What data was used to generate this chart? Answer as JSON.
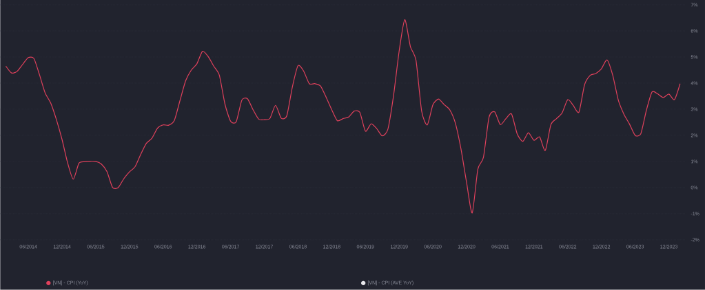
{
  "chart_data": {
    "type": "line",
    "x": [
      "2014-02",
      "2014-03",
      "2014-04",
      "2014-05",
      "2014-06",
      "2014-07",
      "2014-08",
      "2014-09",
      "2014-10",
      "2014-11",
      "2014-12",
      "2015-01",
      "2015-02",
      "2015-03",
      "2015-04",
      "2015-05",
      "2015-06",
      "2015-07",
      "2015-08",
      "2015-09",
      "2015-10",
      "2015-11",
      "2015-12",
      "2016-01",
      "2016-02",
      "2016-03",
      "2016-04",
      "2016-05",
      "2016-06",
      "2016-07",
      "2016-08",
      "2016-09",
      "2016-10",
      "2016-11",
      "2016-12",
      "2017-01",
      "2017-02",
      "2017-03",
      "2017-04",
      "2017-05",
      "2017-06",
      "2017-07",
      "2017-08",
      "2017-09",
      "2017-10",
      "2017-11",
      "2017-12",
      "2018-01",
      "2018-02",
      "2018-03",
      "2018-04",
      "2018-05",
      "2018-06",
      "2018-07",
      "2018-08",
      "2018-09",
      "2018-10",
      "2018-11",
      "2018-12",
      "2019-01",
      "2019-02",
      "2019-03",
      "2019-04",
      "2019-05",
      "2019-06",
      "2019-07",
      "2019-08",
      "2019-09",
      "2019-10",
      "2019-11",
      "2019-12",
      "2020-01",
      "2020-02",
      "2020-03",
      "2020-04",
      "2020-05",
      "2020-06",
      "2020-07",
      "2020-08",
      "2020-09",
      "2020-10",
      "2020-11",
      "2020-12",
      "2021-01",
      "2021-02",
      "2021-03",
      "2021-04",
      "2021-05",
      "2021-06",
      "2021-07",
      "2021-08",
      "2021-09",
      "2021-10",
      "2021-11",
      "2021-12",
      "2022-01",
      "2022-02",
      "2022-03",
      "2022-04",
      "2022-05",
      "2022-06",
      "2022-07",
      "2022-08",
      "2022-09",
      "2022-10",
      "2022-11",
      "2022-12",
      "2023-01",
      "2023-02",
      "2023-03",
      "2023-04",
      "2023-05",
      "2023-06",
      "2023-07",
      "2023-08",
      "2023-09",
      "2023-10",
      "2023-11",
      "2023-12",
      "2024-01",
      "2024-02"
    ],
    "series": [
      {
        "name": "[VN] - CPI (YoY)",
        "color": "#e0415c",
        "values": [
          4.65,
          4.39,
          4.45,
          4.72,
          4.98,
          4.94,
          4.31,
          3.62,
          3.23,
          2.6,
          1.84,
          0.94,
          0.32,
          0.93,
          0.99,
          1.01,
          1.0,
          0.9,
          0.61,
          0.0,
          0.0,
          0.34,
          0.6,
          0.8,
          1.27,
          1.69,
          1.89,
          2.28,
          2.4,
          2.39,
          2.58,
          3.34,
          4.09,
          4.5,
          4.74,
          5.22,
          5.02,
          4.65,
          4.3,
          3.19,
          2.54,
          2.52,
          3.35,
          3.4,
          2.98,
          2.62,
          2.6,
          2.65,
          3.15,
          2.66,
          2.75,
          3.86,
          4.67,
          4.46,
          3.98,
          3.98,
          3.89,
          3.46,
          2.98,
          2.56,
          2.64,
          2.7,
          2.93,
          2.88,
          2.16,
          2.44,
          2.26,
          1.98,
          2.24,
          3.52,
          5.23,
          6.43,
          5.4,
          4.87,
          2.93,
          2.4,
          3.17,
          3.39,
          3.18,
          2.98,
          2.47,
          1.48,
          0.19,
          -0.97,
          0.7,
          1.16,
          2.7,
          2.9,
          2.41,
          2.64,
          2.82,
          2.06,
          1.77,
          2.1,
          1.81,
          1.94,
          1.42,
          2.41,
          2.64,
          2.86,
          3.37,
          3.14,
          2.89,
          3.94,
          4.3,
          4.37,
          4.55,
          4.89,
          4.31,
          3.35,
          2.81,
          2.43,
          2.0,
          2.06,
          2.96,
          3.66,
          3.59,
          3.45,
          3.58,
          3.37,
          3.98
        ]
      },
      {
        "name": "[VN] - CPI (AVE YoY)",
        "color": "#e8e8ec",
        "values": [
          null,
          null,
          null,
          null,
          null,
          null,
          null,
          null,
          null,
          null,
          null,
          null,
          null,
          null,
          null,
          null,
          null,
          null,
          null,
          null,
          null,
          null,
          null,
          null,
          null,
          null,
          null,
          null,
          null,
          null,
          null,
          null,
          null,
          null,
          null,
          null,
          null,
          null,
          null,
          null,
          null,
          null,
          null,
          null,
          null,
          null,
          null,
          null,
          null,
          null,
          null,
          null,
          null,
          null,
          null,
          null,
          null,
          null,
          null,
          null,
          null,
          null,
          null,
          null,
          null,
          null,
          null,
          null,
          null,
          null,
          null,
          null,
          null,
          null,
          null,
          null,
          null,
          null,
          null,
          null,
          null,
          null,
          null,
          null,
          null,
          null,
          null,
          null,
          null,
          null,
          null,
          null,
          null,
          null,
          null,
          null,
          null,
          null,
          null,
          null,
          null,
          null,
          null,
          null,
          null,
          null,
          null,
          null,
          null,
          null,
          null,
          null,
          null,
          null,
          null,
          null,
          null,
          null,
          null,
          null,
          null
        ]
      }
    ],
    "xlim": [
      "2014-01",
      "2024-03"
    ],
    "xticks": [
      {
        "value": "2014-06",
        "label": "06/2014"
      },
      {
        "value": "2014-12",
        "label": "12/2014"
      },
      {
        "value": "2015-06",
        "label": "06/2015"
      },
      {
        "value": "2015-12",
        "label": "12/2015"
      },
      {
        "value": "2016-06",
        "label": "06/2016"
      },
      {
        "value": "2016-12",
        "label": "12/2016"
      },
      {
        "value": "2017-06",
        "label": "06/2017"
      },
      {
        "value": "2017-12",
        "label": "12/2017"
      },
      {
        "value": "2018-06",
        "label": "06/2018"
      },
      {
        "value": "2018-12",
        "label": "12/2018"
      },
      {
        "value": "2019-06",
        "label": "06/2019"
      },
      {
        "value": "2019-12",
        "label": "12/2019"
      },
      {
        "value": "2020-06",
        "label": "06/2020"
      },
      {
        "value": "2020-12",
        "label": "12/2020"
      },
      {
        "value": "2021-06",
        "label": "06/2021"
      },
      {
        "value": "2021-12",
        "label": "12/2021"
      },
      {
        "value": "2022-06",
        "label": "06/2022"
      },
      {
        "value": "2022-12",
        "label": "12/2022"
      },
      {
        "value": "2023-06",
        "label": "06/2023"
      },
      {
        "value": "2023-12",
        "label": "12/2023"
      }
    ],
    "ylim": [
      -2,
      7
    ],
    "yticks": [
      {
        "value": -2,
        "label": "-2%"
      },
      {
        "value": -1,
        "label": "-1%"
      },
      {
        "value": 0,
        "label": "0%"
      },
      {
        "value": 1,
        "label": "1%"
      },
      {
        "value": 2,
        "label": "2%"
      },
      {
        "value": 3,
        "label": "3%"
      },
      {
        "value": 4,
        "label": "4%"
      },
      {
        "value": 5,
        "label": "5%"
      },
      {
        "value": 6,
        "label": "6%"
      },
      {
        "value": 7,
        "label": "7%"
      }
    ],
    "grid": "y",
    "legend": "bottom",
    "marker": "none",
    "line_style": "solid"
  }
}
